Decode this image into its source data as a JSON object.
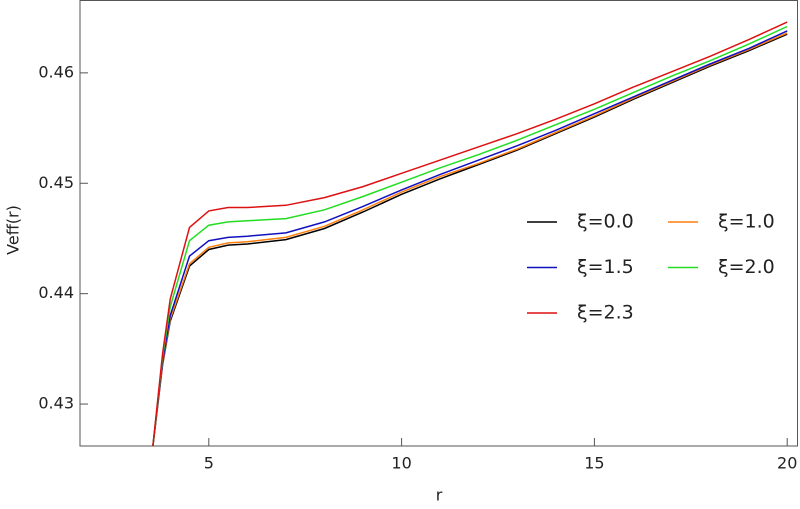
{
  "chart_data": {
    "type": "line",
    "x_label": "r",
    "y_label": "Veff(r)",
    "x": [
      3.55,
      3.8,
      4,
      4.5,
      5,
      5.5,
      6,
      7,
      8,
      9,
      10,
      11,
      12,
      13,
      14,
      15,
      16,
      17,
      18,
      19,
      20
    ],
    "series": [
      {
        "name": "ξ=0.0",
        "color": "#000000",
        "values": [
          0.4262,
          0.4335,
          0.4375,
          0.4425,
          0.444,
          0.4444,
          0.4445,
          0.4449,
          0.4459,
          0.4474,
          0.449,
          0.4504,
          0.4517,
          0.453,
          0.4545,
          0.456,
          0.4576,
          0.4591,
          0.4606,
          0.462,
          0.4635
        ]
      },
      {
        "name": "ξ=1.0",
        "color": "#ff7f0e",
        "values": [
          0.4262,
          0.4336,
          0.4377,
          0.4427,
          0.4442,
          0.4446,
          0.4447,
          0.4451,
          0.4461,
          0.4476,
          0.4492,
          0.4506,
          0.4518,
          0.4531,
          0.4546,
          0.4561,
          0.4577,
          0.4592,
          0.4607,
          0.4621,
          0.4636
        ]
      },
      {
        "name": "ξ=1.5",
        "color": "#1010c0",
        "values": [
          0.4262,
          0.4338,
          0.438,
          0.4434,
          0.4448,
          0.4451,
          0.4452,
          0.4455,
          0.4465,
          0.4479,
          0.4494,
          0.4508,
          0.4521,
          0.4534,
          0.4548,
          0.4563,
          0.4578,
          0.4593,
          0.4608,
          0.4622,
          0.4638
        ]
      },
      {
        "name": "ξ=2.0",
        "color": "#22dd22",
        "values": [
          0.4262,
          0.4342,
          0.4388,
          0.4448,
          0.4462,
          0.4465,
          0.4466,
          0.4468,
          0.4476,
          0.4488,
          0.4501,
          0.4514,
          0.4526,
          0.4539,
          0.4553,
          0.4567,
          0.4582,
          0.4597,
          0.4611,
          0.4626,
          0.4642
        ]
      },
      {
        "name": "ξ=2.3",
        "color": "#dd1111",
        "values": [
          0.4262,
          0.4345,
          0.4395,
          0.446,
          0.4475,
          0.4478,
          0.4478,
          0.448,
          0.4487,
          0.4497,
          0.4509,
          0.4521,
          0.4533,
          0.4545,
          0.4558,
          0.4572,
          0.4587,
          0.4601,
          0.4615,
          0.463,
          0.4646
        ]
      }
    ],
    "xlim": [
      1.66,
      20.28
    ],
    "ylim": [
      0.4262,
      0.4666
    ],
    "xticks": [
      5,
      10,
      15,
      20
    ],
    "yticks": [
      0.43,
      0.44,
      0.45,
      0.46
    ],
    "legend": "right",
    "grid": false
  }
}
